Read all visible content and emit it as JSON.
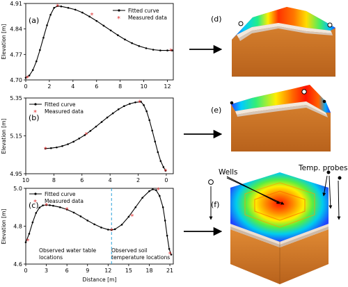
{
  "figure": {
    "ylabel": "Elevation [m]",
    "xlabel_c": "Distance [m]",
    "legend_fitted": "Fitted curve",
    "legend_measured": "Measured data",
    "annotation_c_left_line1": "Observed water table",
    "annotation_c_left_line2": "locations",
    "annotation_c_right_line1": "Observed soil",
    "annotation_c_right_line2": "temperature locations",
    "wells_label": "Wells",
    "probes_label": "Temp. probes"
  },
  "chart_data": [
    {
      "type": "line",
      "panel": "(a)",
      "ylabel": "Elevation [m]",
      "xlim": [
        0,
        12.5
      ],
      "ylim": [
        4.7,
        4.91
      ],
      "xticks": [
        "0",
        "2",
        "4",
        "6",
        "8",
        "10",
        "12"
      ],
      "yticks": [
        "4.70",
        "4.77",
        "4.84",
        "4.91"
      ],
      "legend": "top-right",
      "series": [
        {
          "name": "Fitted curve",
          "x": [
            0,
            0.3,
            0.6,
            0.9,
            1.2,
            1.5,
            1.8,
            2.1,
            2.4,
            2.7,
            3.0,
            3.6,
            4.2,
            4.8,
            5.4,
            6.0,
            6.6,
            7.2,
            7.8,
            8.4,
            9.0,
            9.6,
            10.2,
            10.8,
            11.4,
            12.0,
            12.4
          ],
          "y": [
            4.706,
            4.712,
            4.727,
            4.751,
            4.782,
            4.816,
            4.85,
            4.879,
            4.898,
            4.903,
            4.902,
            4.898,
            4.893,
            4.885,
            4.874,
            4.862,
            4.849,
            4.836,
            4.823,
            4.811,
            4.801,
            4.793,
            4.787,
            4.783,
            4.781,
            4.781,
            4.781
          ]
        },
        {
          "name": "Measured data",
          "x": [
            0.15,
            2.7,
            5.6,
            12.3
          ],
          "y": [
            4.707,
            4.903,
            4.879,
            4.781
          ]
        }
      ]
    },
    {
      "type": "line",
      "panel": "(b)",
      "ylabel": "Elevation [m]",
      "xlim": [
        10,
        -0.5
      ],
      "ylim": [
        4.95,
        5.35
      ],
      "xticks": [
        "10",
        "8",
        "6",
        "4",
        "2",
        "0"
      ],
      "yticks": [
        "4.95",
        "5.15",
        "5.35"
      ],
      "legend": "top-left",
      "series": [
        {
          "name": "Fitted curve",
          "x": [
            8.6,
            8.2,
            7.8,
            7.4,
            7.0,
            6.6,
            6.2,
            5.8,
            5.4,
            5.0,
            4.6,
            4.2,
            3.8,
            3.4,
            3.0,
            2.6,
            2.2,
            1.8,
            1.6,
            1.4,
            1.2,
            1.0,
            0.8,
            0.6,
            0.4,
            0.2,
            0.05
          ],
          "y": [
            5.083,
            5.085,
            5.089,
            5.096,
            5.106,
            5.119,
            5.136,
            5.154,
            5.176,
            5.199,
            5.223,
            5.247,
            5.269,
            5.29,
            5.307,
            5.319,
            5.327,
            5.33,
            5.312,
            5.28,
            5.233,
            5.178,
            5.12,
            5.064,
            5.017,
            4.985,
            4.966
          ]
        },
        {
          "name": "Measured data",
          "x": [
            8.6,
            5.7,
            1.9,
            0.05
          ],
          "y": [
            5.083,
            5.159,
            5.33,
            4.966
          ]
        }
      ]
    },
    {
      "type": "line",
      "panel": "(c)",
      "xlabel": "Distance [m]",
      "ylabel": "Elevation [m]",
      "xlim": [
        0,
        21.5
      ],
      "ylim": [
        4.6,
        5.0
      ],
      "xticks": [
        "0",
        "3",
        "6",
        "9",
        "12",
        "15",
        "18",
        "21"
      ],
      "yticks": [
        "4.6",
        "4.8",
        "5.0"
      ],
      "legend": "top-left",
      "vline_x": 12.5,
      "series": [
        {
          "name": "Fitted curve",
          "x": [
            0,
            0.5,
            1.0,
            1.5,
            2.0,
            2.5,
            3.0,
            3.5,
            4.0,
            5.0,
            6.0,
            7.0,
            8.0,
            9.0,
            10.0,
            11.0,
            12.0,
            12.5,
            13.0,
            14.0,
            15.0,
            16.0,
            17.0,
            18.0,
            18.5,
            19.0,
            19.5,
            20.0,
            20.3,
            20.6,
            20.9,
            21.2
          ],
          "y": [
            4.715,
            4.76,
            4.82,
            4.87,
            4.898,
            4.91,
            4.912,
            4.911,
            4.908,
            4.9,
            4.888,
            4.872,
            4.852,
            4.83,
            4.81,
            4.793,
            4.782,
            4.78,
            4.784,
            4.808,
            4.85,
            4.9,
            4.95,
            4.985,
            4.995,
            4.99,
            4.96,
            4.9,
            4.83,
            4.75,
            4.68,
            4.65
          ]
        },
        {
          "name": "Measured data",
          "x": [
            0.3,
            3.0,
            6.0,
            12.5,
            15.5,
            19.3,
            21.0
          ],
          "y": [
            4.725,
            4.912,
            4.89,
            4.78,
            4.855,
            4.995,
            4.655
          ]
        }
      ]
    }
  ]
}
